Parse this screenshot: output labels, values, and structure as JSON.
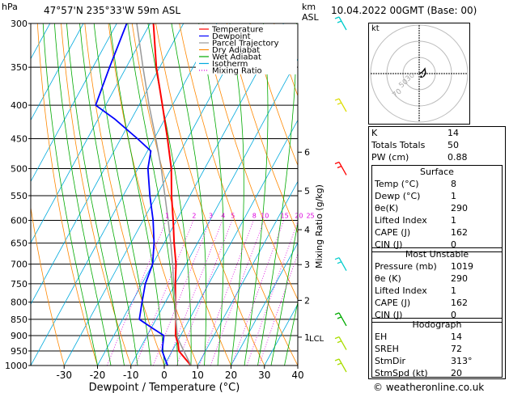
{
  "header": {
    "pres_unit": "hPa",
    "location": "47°57'N  235°33'W  59m  ASL",
    "height_unit_line1": "km",
    "height_unit_line2": "ASL",
    "datetime": "10.04.2022  00GMT  (Base: 00)"
  },
  "chart_data": {
    "type": "skew-t",
    "xlabel": "Dewpoint / Temperature (°C)",
    "x_ticks": [
      -30,
      -20,
      -10,
      0,
      10,
      20,
      30,
      40
    ],
    "pressure_levels": [
      300,
      350,
      400,
      450,
      500,
      550,
      600,
      650,
      700,
      750,
      800,
      850,
      900,
      950,
      1000
    ],
    "height_ticks_km": [
      {
        "label": "6",
        "p": 472
      },
      {
        "label": "5",
        "p": 541
      },
      {
        "label": "4",
        "p": 620
      },
      {
        "label": "3",
        "p": 701
      },
      {
        "label": "2",
        "p": 795
      },
      {
        "label": "1",
        "p": 905
      }
    ],
    "lcl_label": "LCL",
    "lcl_p": 908,
    "mixing_ratio_axis_label": "Mixing Ratio (g/kg)",
    "mixing_ratio_labels": [
      "1",
      "2",
      "3",
      "4",
      "5",
      "8",
      "10",
      "15",
      "20",
      "25"
    ],
    "legend": [
      {
        "name": "Temperature",
        "color": "#ff0000",
        "dash": "solid"
      },
      {
        "name": "Dewpoint",
        "color": "#0000ff",
        "dash": "solid"
      },
      {
        "name": "Parcel Trajectory",
        "color": "#999999",
        "dash": "solid"
      },
      {
        "name": "Dry Adiabat",
        "color": "#ff8800",
        "dash": "solid"
      },
      {
        "name": "Wet Adiabat",
        "color": "#00aa00",
        "dash": "solid"
      },
      {
        "name": "Isotherm",
        "color": "#00aadd",
        "dash": "solid"
      },
      {
        "name": "Mixing Ratio",
        "color": "#dd00dd",
        "dash": "dotted"
      }
    ],
    "series": [
      {
        "name": "Temperature",
        "color": "#ff0000",
        "points": [
          [
            1000,
            8
          ],
          [
            975,
            5
          ],
          [
            950,
            2
          ],
          [
            925,
            0.5
          ],
          [
            900,
            -1.5
          ],
          [
            850,
            -4
          ],
          [
            800,
            -7
          ],
          [
            750,
            -10
          ],
          [
            700,
            -13
          ],
          [
            650,
            -17
          ],
          [
            600,
            -21
          ],
          [
            550,
            -25.5
          ],
          [
            500,
            -30
          ],
          [
            450,
            -36
          ],
          [
            400,
            -43
          ],
          [
            350,
            -51
          ],
          [
            300,
            -59
          ]
        ]
      },
      {
        "name": "Dewpoint",
        "color": "#0000ff",
        "points": [
          [
            1000,
            1
          ],
          [
            975,
            -1
          ],
          [
            950,
            -3
          ],
          [
            925,
            -4
          ],
          [
            900,
            -5
          ],
          [
            875,
            -10
          ],
          [
            850,
            -15
          ],
          [
            800,
            -17
          ],
          [
            750,
            -19
          ],
          [
            700,
            -20
          ],
          [
            650,
            -23
          ],
          [
            600,
            -27
          ],
          [
            550,
            -32
          ],
          [
            500,
            -37
          ],
          [
            470,
            -39
          ],
          [
            450,
            -45
          ],
          [
            420,
            -55
          ],
          [
            400,
            -63
          ],
          [
            350,
            -65
          ],
          [
            300,
            -67
          ]
        ]
      },
      {
        "name": "Parcel Trajectory",
        "color": "#999999",
        "points": [
          [
            1000,
            8
          ],
          [
            950,
            3.5
          ],
          [
            908,
            -0.5
          ],
          [
            850,
            -4
          ],
          [
            800,
            -7
          ],
          [
            750,
            -10.5
          ],
          [
            700,
            -14
          ],
          [
            650,
            -18
          ],
          [
            600,
            -22.5
          ],
          [
            550,
            -27.5
          ],
          [
            500,
            -33
          ],
          [
            450,
            -39.5
          ],
          [
            400,
            -47
          ],
          [
            350,
            -55
          ],
          [
            300,
            -64
          ]
        ]
      }
    ]
  },
  "hodograph": {
    "unit": "kt",
    "ring_labels": [
      "70",
      "50",
      "30"
    ]
  },
  "wind_barbs": [
    {
      "p": 300,
      "color": "#00cccc"
    },
    {
      "p": 400,
      "color": "#dddd00"
    },
    {
      "p": 500,
      "color": "#ff0000"
    },
    {
      "p": 700,
      "color": "#00cccc"
    },
    {
      "p": 850,
      "color": "#00aa00"
    },
    {
      "p": 925,
      "color": "#aadd00"
    },
    {
      "p": 1000,
      "color": "#aadd00"
    }
  ],
  "indices": {
    "top": [
      {
        "k": "K",
        "v": "14"
      },
      {
        "k": "Totals Totals",
        "v": "50"
      },
      {
        "k": "PW (cm)",
        "v": "0.88"
      }
    ],
    "surface": {
      "title": "Surface",
      "rows": [
        {
          "k": "Temp (°C)",
          "v": "8"
        },
        {
          "k": "Dewp (°C)",
          "v": "1"
        },
        {
          "k": "θe(K)",
          "v": "290"
        },
        {
          "k": "Lifted Index",
          "v": "1"
        },
        {
          "k": "CAPE (J)",
          "v": "162"
        },
        {
          "k": "CIN (J)",
          "v": "0"
        }
      ]
    },
    "unstable": {
      "title": "Most Unstable",
      "rows": [
        {
          "k": "Pressure (mb)",
          "v": "1019"
        },
        {
          "k": "θe (K)",
          "v": "290"
        },
        {
          "k": "Lifted Index",
          "v": "1"
        },
        {
          "k": "CAPE (J)",
          "v": "162"
        },
        {
          "k": "CIN (J)",
          "v": "0"
        }
      ]
    },
    "hodo": {
      "title": "Hodograph",
      "rows": [
        {
          "k": "EH",
          "v": "14"
        },
        {
          "k": "SREH",
          "v": "72"
        },
        {
          "k": "StmDir",
          "v": "313°"
        },
        {
          "k": "StmSpd (kt)",
          "v": "20"
        }
      ]
    }
  },
  "footer": "© weatheronline.co.uk"
}
